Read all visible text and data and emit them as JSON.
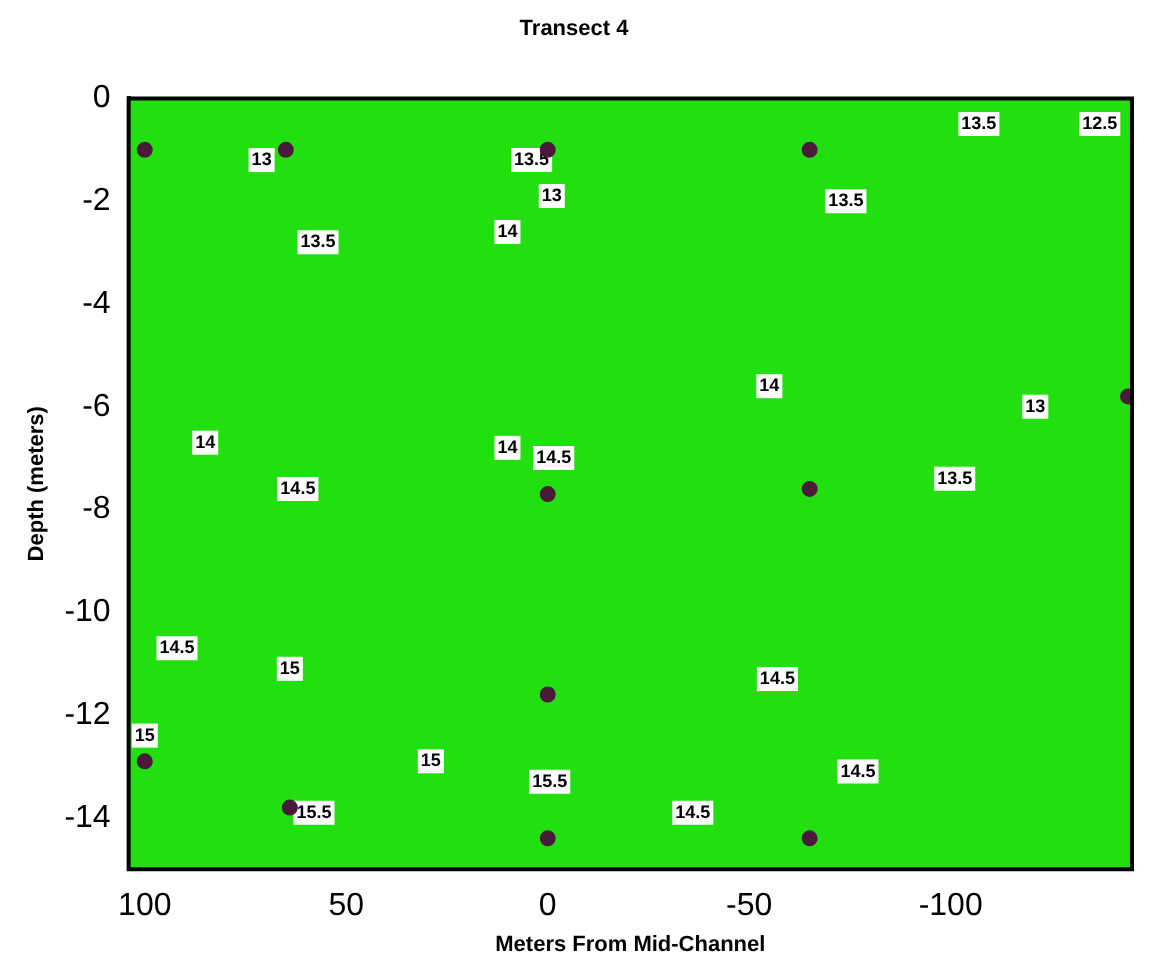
{
  "chart_data": {
    "type": "scatter",
    "title": "Transect 4",
    "xlabel": "Meters From Mid-Channel",
    "ylabel": "Depth (meters)",
    "x": [
      100,
      65,
      0,
      -65,
      -144,
      0,
      -65,
      0,
      100,
      64,
      0,
      -65
    ],
    "values": [
      -1,
      -1,
      -1,
      -1,
      -5.8,
      -7.7,
      -7.6,
      -11.6,
      -12.9,
      -13.8,
      -14.4,
      -14.4
    ],
    "color": "#4a1a3a",
    "marker": "circle",
    "grid": false,
    "legend": false,
    "xlim": [
      104,
      -145
    ],
    "xticks": [
      100,
      50,
      0,
      -50,
      -100
    ],
    "ylim": [
      -15,
      0
    ],
    "yticks": [
      0,
      -2,
      -4,
      -6,
      -8,
      -10,
      -12,
      -14
    ],
    "annotations": [
      {
        "text": "13",
        "x": 71,
        "y": -1.2
      },
      {
        "text": "13.5",
        "x": 57,
        "y": -2.8
      },
      {
        "text": "13.5",
        "x": 4,
        "y": -1.2
      },
      {
        "text": "13",
        "x": -1,
        "y": -1.9
      },
      {
        "text": "14",
        "x": 10,
        "y": -2.6
      },
      {
        "text": "13.5",
        "x": -74,
        "y": -2
      },
      {
        "text": "13.5",
        "x": -107,
        "y": -0.5
      },
      {
        "text": "12.5",
        "x": -137,
        "y": -0.5
      },
      {
        "text": "14",
        "x": -55,
        "y": -5.6
      },
      {
        "text": "13",
        "x": -121,
        "y": -6
      },
      {
        "text": "14",
        "x": 85,
        "y": -6.7
      },
      {
        "text": "14",
        "x": 10,
        "y": -6.8
      },
      {
        "text": "14.5",
        "x": -1.5,
        "y": -7
      },
      {
        "text": "14.5",
        "x": 62,
        "y": -7.6
      },
      {
        "text": "13.5",
        "x": -101,
        "y": -7.4
      },
      {
        "text": "14.5",
        "x": 92,
        "y": -10.7
      },
      {
        "text": "15",
        "x": 64,
        "y": -11.1
      },
      {
        "text": "14.5",
        "x": -57,
        "y": -11.3
      },
      {
        "text": "15",
        "x": 29,
        "y": -12.9
      },
      {
        "text": "15.5",
        "x": 58,
        "y": -13.9
      },
      {
        "text": "15.5",
        "x": -0.5,
        "y": -13.3
      },
      {
        "text": "14.5",
        "x": -36,
        "y": -13.9
      },
      {
        "text": "14.5",
        "x": -77,
        "y": -13.1
      },
      {
        "text": "15",
        "x": 100,
        "y": -12.4
      }
    ]
  }
}
